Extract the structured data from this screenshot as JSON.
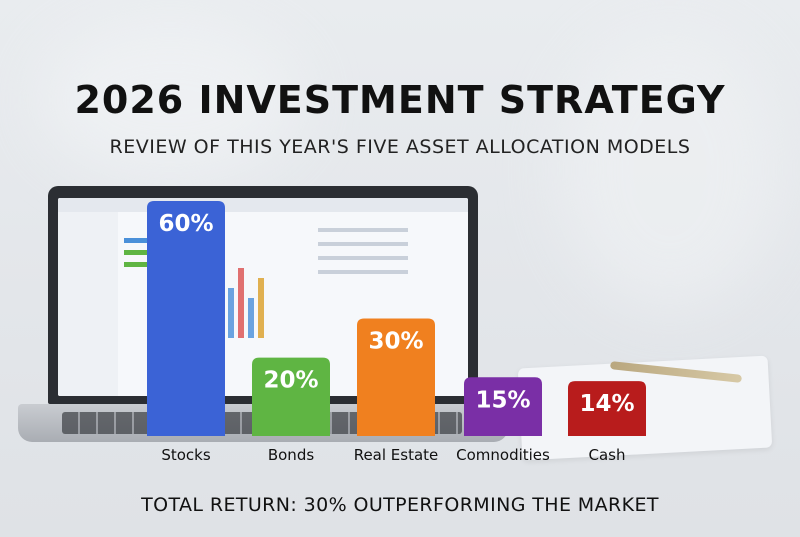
{
  "header": {
    "title": "2026 INVESTMENT STRATEGY",
    "subtitle": "REVIEW OF THIS YEAR'S FIVE ASSET ALLOCATION MODELS"
  },
  "footer": {
    "text": "TOTAL RETURN: 30% OUTPERFORMING THE MARKET"
  },
  "chart_data": {
    "type": "bar",
    "title": "2026 INVESTMENT STRATEGY",
    "subtitle": "REVIEW OF THIS YEAR'S FIVE ASSET ALLOCATION MODELS",
    "categories": [
      "Stocks",
      "Bonds",
      "Real Estate",
      "Comnodities",
      "Cash"
    ],
    "values": [
      60,
      20,
      30,
      15,
      14
    ],
    "value_labels": [
      "60%",
      "20%",
      "30%",
      "15%",
      "14%"
    ],
    "colors": [
      "#3b63d6",
      "#5fb543",
      "#f0801f",
      "#7a2fa6",
      "#b81c1c"
    ],
    "xlabel": "",
    "ylabel": "",
    "ylim": [
      0,
      60
    ],
    "grid": false,
    "legend": "none"
  }
}
